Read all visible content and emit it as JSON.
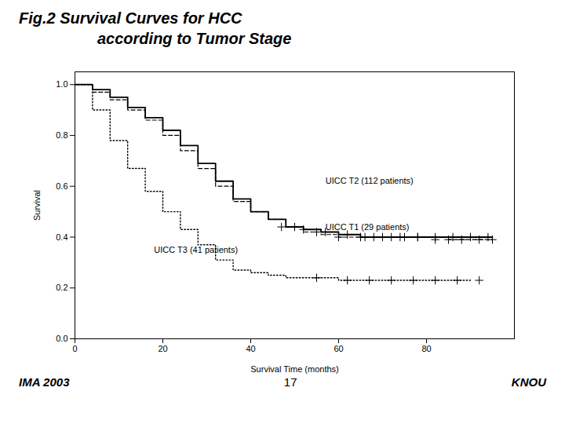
{
  "chart_data": {
    "type": "step",
    "title": "Fig.2 Survival Curves for HCC",
    "subtitle": "according to Tumor Stage",
    "x_label": "Survival Time (months)",
    "y_label": "Survival",
    "xlim": [
      0,
      100
    ],
    "ylim": [
      0.0,
      1.05
    ],
    "xticks": [
      0,
      20,
      40,
      60,
      80
    ],
    "yticks": [
      {
        "value": 0.0,
        "label": "0.0"
      },
      0.2,
      0.4,
      0.6,
      0.8,
      {
        "value": 1.0,
        "label": "1.0"
      }
    ],
    "grid": false,
    "series": [
      {
        "color": "black",
        "line_style": "solid",
        "marker": "plus",
        "x": [
          0,
          4,
          8,
          12,
          16,
          20,
          24,
          28,
          32,
          36,
          40,
          44,
          48,
          52,
          56,
          60,
          65,
          70,
          75,
          80,
          85,
          90,
          95
        ],
        "values": [
          1.0,
          0.98,
          0.95,
          0.91,
          0.87,
          0.82,
          0.76,
          0.69,
          0.62,
          0.55,
          0.5,
          0.47,
          0.44,
          0.43,
          0.42,
          0.41,
          0.4,
          0.4,
          0.4,
          0.4,
          0.4,
          0.4,
          0.4
        ],
        "censor_x": [
          47,
          52,
          57,
          62,
          66,
          70,
          74,
          78,
          82,
          86,
          90,
          94
        ],
        "censor_y": [
          0.44,
          0.43,
          0.42,
          0.41,
          0.4,
          0.4,
          0.4,
          0.4,
          0.4,
          0.4,
          0.4,
          0.4
        ]
      },
      {
        "color": "black",
        "line_style": "dashed",
        "marker": "plus",
        "x": [
          0,
          4,
          8,
          12,
          16,
          20,
          24,
          28,
          32,
          36,
          40,
          44,
          48,
          52,
          56,
          60,
          65,
          70,
          75,
          80,
          85,
          90,
          95
        ],
        "values": [
          1.0,
          0.97,
          0.94,
          0.9,
          0.86,
          0.8,
          0.74,
          0.67,
          0.6,
          0.54,
          0.5,
          0.47,
          0.44,
          0.42,
          0.41,
          0.4,
          0.4,
          0.4,
          0.4,
          0.4,
          0.39,
          0.39,
          0.39
        ],
        "censor_x": [
          50,
          55,
          60,
          65,
          68,
          72,
          75,
          78,
          82,
          85,
          88,
          92,
          95
        ],
        "censor_y": [
          0.44,
          0.42,
          0.4,
          0.4,
          0.4,
          0.4,
          0.4,
          0.4,
          0.39,
          0.39,
          0.39,
          0.39,
          0.39
        ]
      },
      {
        "color": "black",
        "line_style": "dotted",
        "marker": "plus",
        "x": [
          0,
          4,
          8,
          12,
          16,
          20,
          24,
          28,
          32,
          36,
          40,
          44,
          48,
          52,
          56,
          60,
          65,
          70,
          75,
          80,
          85,
          90
        ],
        "values": [
          1.0,
          0.9,
          0.78,
          0.67,
          0.58,
          0.5,
          0.43,
          0.37,
          0.31,
          0.27,
          0.26,
          0.25,
          0.24,
          0.24,
          0.24,
          0.23,
          0.23,
          0.23,
          0.23,
          0.23,
          0.23,
          0.23
        ],
        "censor_x": [
          55,
          62,
          67,
          72,
          77,
          82,
          87,
          92
        ],
        "censor_y": [
          0.24,
          0.23,
          0.23,
          0.23,
          0.23,
          0.23,
          0.23,
          0.23
        ]
      }
    ],
    "annotations": [
      {
        "text": "UICC T2 (112 patients)",
        "x": 57,
        "y": 0.62
      },
      {
        "text": "UICC T1 (29 patients)",
        "x": 57,
        "y": 0.44
      },
      {
        "text": "UICC T3 (41 patients)",
        "x": 18,
        "y": 0.35
      }
    ],
    "footer": [
      "IMA 2003",
      "17",
      "KNOU"
    ]
  }
}
